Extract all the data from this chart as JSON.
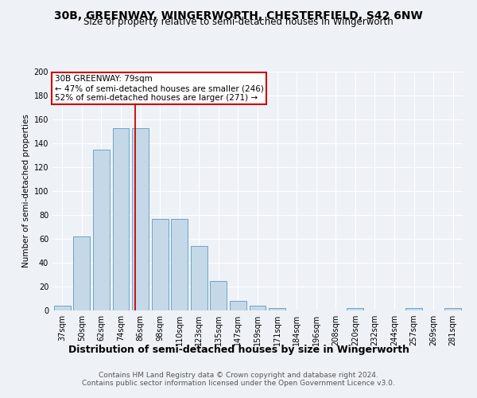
{
  "title": "30B, GREENWAY, WINGERWORTH, CHESTERFIELD, S42 6NW",
  "subtitle": "Size of property relative to semi-detached houses in Wingerworth",
  "xlabel": "Distribution of semi-detached houses by size in Wingerworth",
  "ylabel": "Number of semi-detached properties",
  "footnote1": "Contains HM Land Registry data © Crown copyright and database right 2024.",
  "footnote2": "Contains public sector information licensed under the Open Government Licence v3.0.",
  "categories": [
    "37sqm",
    "50sqm",
    "62sqm",
    "74sqm",
    "86sqm",
    "98sqm",
    "110sqm",
    "123sqm",
    "135sqm",
    "147sqm",
    "159sqm",
    "171sqm",
    "184sqm",
    "196sqm",
    "208sqm",
    "220sqm",
    "232sqm",
    "244sqm",
    "257sqm",
    "269sqm",
    "281sqm"
  ],
  "values": [
    4,
    62,
    135,
    153,
    153,
    77,
    77,
    54,
    25,
    8,
    4,
    2,
    0,
    0,
    0,
    2,
    0,
    0,
    2,
    0,
    2
  ],
  "bar_color": "#c5d8e8",
  "bar_edge_color": "#5a9abf",
  "red_line_x": 3.75,
  "red_line_label": "30B GREENWAY: 79sqm",
  "annotation_line1": "← 47% of semi-detached houses are smaller (246)",
  "annotation_line2": "52% of semi-detached houses are larger (271) →",
  "annotation_box_facecolor": "#ffffff",
  "annotation_box_edge": "#cc0000",
  "ylim": [
    0,
    200
  ],
  "yticks": [
    0,
    20,
    40,
    60,
    80,
    100,
    120,
    140,
    160,
    180,
    200
  ],
  "background_color": "#eef2f7",
  "grid_color": "#ffffff",
  "title_fontsize": 10,
  "subtitle_fontsize": 8.5,
  "xlabel_fontsize": 9,
  "ylabel_fontsize": 7.5,
  "tick_fontsize": 7,
  "footnote_fontsize": 6.5,
  "annot_fontsize": 7.5
}
